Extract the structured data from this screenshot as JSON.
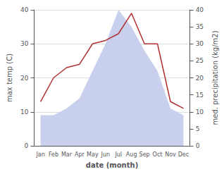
{
  "chart_data": {
    "type": "line",
    "xlabel": "date (month)",
    "ylabel": "max temp (C)",
    "y2label": "med. precipitation (kg/m2)",
    "categories": [
      "Jan",
      "Feb",
      "Mar",
      "Apr",
      "May",
      "Jun",
      "Jul",
      "Aug",
      "Sep",
      "Oct",
      "Nov",
      "Dec"
    ],
    "series": [
      {
        "type": "area",
        "axis": "y2",
        "color": "#c8d0ee",
        "values": [
          9,
          9,
          11,
          14,
          22,
          30,
          40,
          35,
          28,
          22,
          11,
          9
        ]
      },
      {
        "type": "line",
        "color": "#b03030",
        "values": [
          13,
          20,
          23,
          24,
          30,
          31,
          33,
          39,
          30,
          30,
          13,
          11
        ]
      }
    ],
    "ylim": [
      0,
      40
    ],
    "yticks": [
      0,
      10,
      20,
      30,
      40
    ],
    "y2lim": [
      0,
      40
    ],
    "y2ticks": [
      0,
      5,
      10,
      15,
      20,
      25,
      30,
      35,
      40
    ],
    "grid": true
  }
}
